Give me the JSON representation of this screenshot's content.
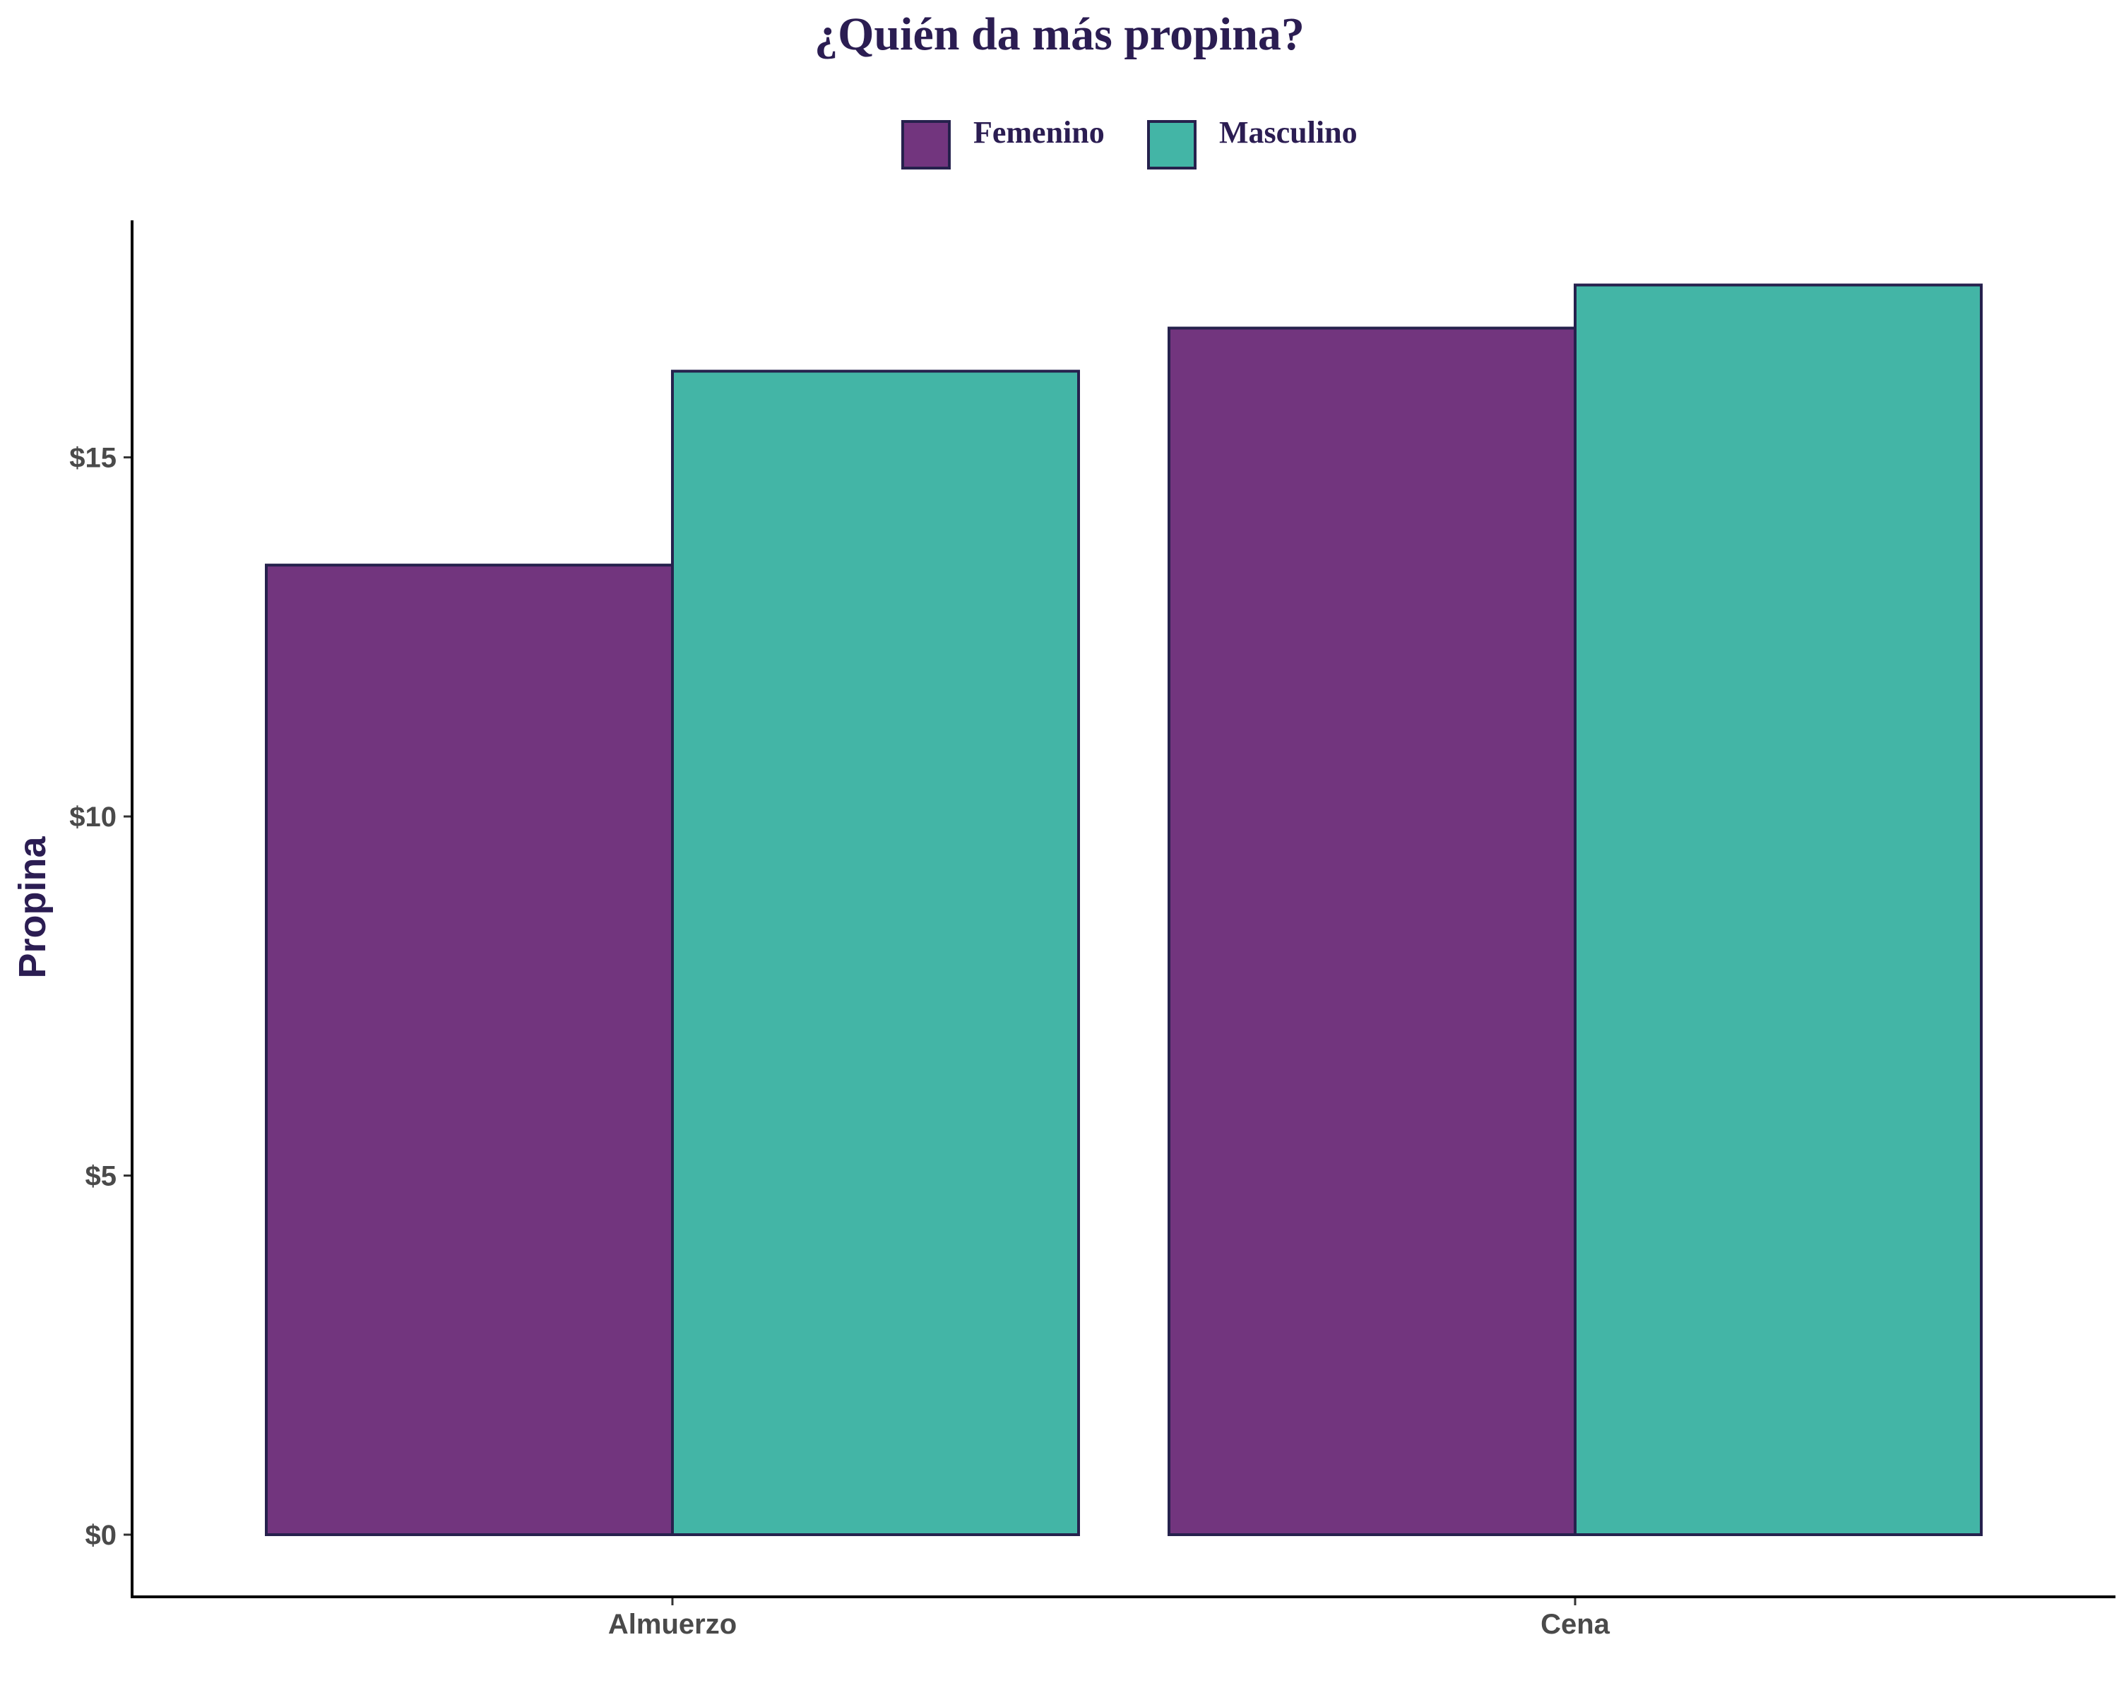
{
  "chart_data": {
    "type": "bar",
    "title": "¿Quién da más propina?",
    "xlabel": "",
    "ylabel": "Propina",
    "categories": [
      "Almuerzo",
      "Cena"
    ],
    "series": [
      {
        "name": "Femenino",
        "values": [
          13.5,
          16.8
        ],
        "color": "#72357e"
      },
      {
        "name": "Masculino",
        "values": [
          16.2,
          17.4
        ],
        "color": "#43b5a6"
      }
    ],
    "ylim": [
      0,
      18.3
    ],
    "yticks": [
      0,
      5,
      10,
      15
    ],
    "ytick_labels": [
      "$0",
      "$5",
      "$10",
      "$15"
    ],
    "bar_outline_color": "#26214d",
    "legend_position": "top-center",
    "grid": false
  }
}
